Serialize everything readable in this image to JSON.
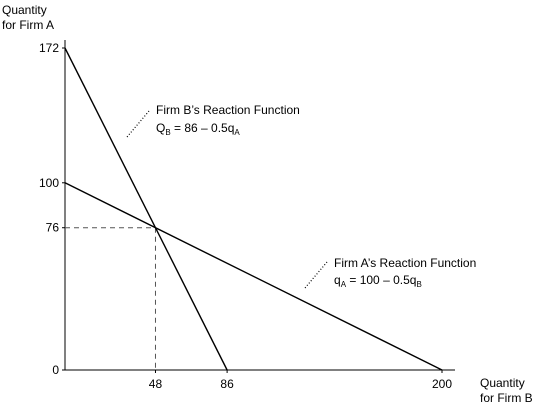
{
  "chart_data": {
    "type": "line",
    "x_axis": {
      "label_lines": [
        "Quantity",
        "for Firm B"
      ],
      "ticks": [
        {
          "value": 48,
          "label": "48"
        },
        {
          "value": 86,
          "label": "86"
        },
        {
          "value": 200,
          "label": "200"
        }
      ],
      "range": [
        0,
        200
      ]
    },
    "y_axis": {
      "label_lines": [
        "Quantity",
        "for Firm A"
      ],
      "ticks": [
        {
          "value": 0,
          "label": "0"
        },
        {
          "value": 76,
          "label": "76"
        },
        {
          "value": 100,
          "label": "100"
        },
        {
          "value": 172,
          "label": "172"
        }
      ],
      "range": [
        0,
        172
      ]
    },
    "series": [
      {
        "key": "firm-b",
        "points": [
          [
            0,
            172
          ],
          [
            86,
            0
          ]
        ],
        "annotation": {
          "title": "Firm B’s Reaction Function",
          "eq_parts": [
            {
              "t": "Q",
              "sub": false
            },
            {
              "t": "B",
              "sub": true
            },
            {
              "t": " = 86 – 0.5q",
              "sub": false
            },
            {
              "t": "A",
              "sub": true
            }
          ]
        }
      },
      {
        "key": "firm-a",
        "points": [
          [
            0,
            100
          ],
          [
            200,
            0
          ]
        ],
        "annotation": {
          "title": "Firm A’s Reaction Function",
          "eq_parts": [
            {
              "t": "q",
              "sub": false
            },
            {
              "t": "A",
              "sub": true
            },
            {
              "t": " = 100 – 0.5q",
              "sub": false
            },
            {
              "t": "B",
              "sub": true
            }
          ]
        }
      }
    ],
    "intersection": {
      "x": 48,
      "y": 76
    },
    "grid": false
  }
}
